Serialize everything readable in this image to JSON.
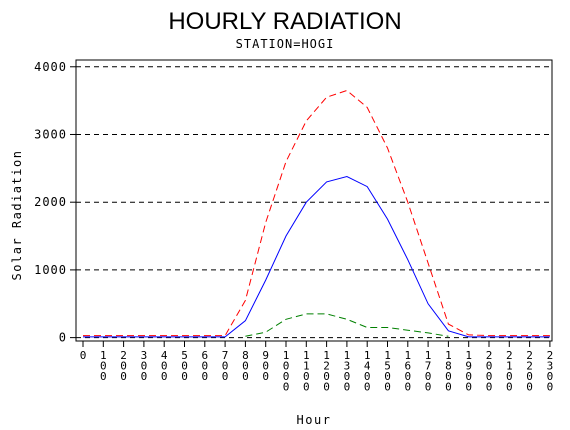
{
  "chart_data": {
    "type": "line",
    "title": "HOURLY RADIATION",
    "subtitle": "STATION=HOGI",
    "xlabel": "Hour",
    "ylabel": "Solar Radiation",
    "x": [
      0,
      100,
      200,
      300,
      400,
      500,
      600,
      700,
      800,
      900,
      1000,
      1100,
      1200,
      1300,
      1400,
      1500,
      1600,
      1700,
      1800,
      1900,
      2000,
      2100,
      2200,
      2300
    ],
    "x_tick_labels": [
      "0",
      "100",
      "200",
      "300",
      "400",
      "500",
      "600",
      "700",
      "800",
      "900",
      "1000",
      "1100",
      "1200",
      "1300",
      "1400",
      "1500",
      "1600",
      "1700",
      "1800",
      "1900",
      "2000",
      "2100",
      "2200",
      "2300"
    ],
    "y_ticks": [
      0,
      1000,
      2000,
      3000,
      4000
    ],
    "y_tick_labels": [
      "0",
      "1000",
      "2000",
      "3000",
      "4000"
    ],
    "ylim": [
      -50,
      4100
    ],
    "grid": "horizontal dashed at major y ticks",
    "series": [
      {
        "color": "#ff0000",
        "dash": "dashed",
        "values": [
          30,
          30,
          30,
          30,
          30,
          30,
          30,
          30,
          550,
          1700,
          2600,
          3200,
          3550,
          3650,
          3400,
          2800,
          2000,
          1100,
          200,
          40,
          30,
          30,
          30,
          30
        ]
      },
      {
        "color": "#0000ff",
        "dash": "solid",
        "values": [
          10,
          10,
          10,
          10,
          10,
          10,
          10,
          10,
          250,
          850,
          1500,
          2000,
          2300,
          2380,
          2230,
          1750,
          1150,
          500,
          100,
          10,
          10,
          10,
          10,
          10
        ]
      },
      {
        "color": "#008000",
        "dash": "dashed",
        "values": [
          null,
          null,
          null,
          null,
          null,
          null,
          null,
          null,
          20,
          80,
          270,
          350,
          350,
          270,
          150,
          150,
          110,
          70,
          20,
          null,
          null,
          null,
          null,
          null
        ]
      }
    ]
  }
}
